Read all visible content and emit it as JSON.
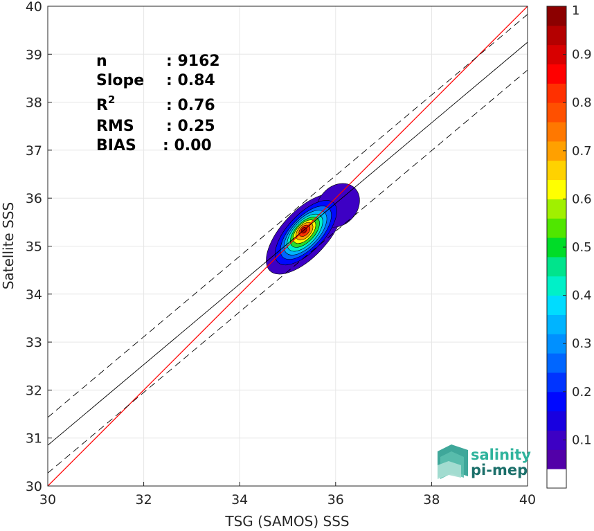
{
  "chart_data": {
    "type": "heatmap",
    "xlabel": "TSG (SAMOS) SSS",
    "ylabel": "Satellite SSS",
    "xlim": [
      30,
      40
    ],
    "ylim": [
      30,
      40
    ],
    "x_ticks": [
      "30",
      "32",
      "34",
      "36",
      "38",
      "40"
    ],
    "y_ticks": [
      "30",
      "31",
      "32",
      "33",
      "34",
      "35",
      "36",
      "37",
      "38",
      "39",
      "40"
    ],
    "grid": true,
    "stats": [
      {
        "key": "n",
        "value": ": 9162"
      },
      {
        "key": "Slope",
        "value": ": 0.84"
      },
      {
        "key": "R",
        "sup": "2",
        "value": ": 0.76"
      },
      {
        "key": "RMS",
        "value": ": 0.25"
      },
      {
        "key": "BIAS",
        "value": ": 0.00"
      }
    ],
    "lines": [
      {
        "kind": "identity",
        "color": "#ff0000",
        "slope": 1.0,
        "intercept": 0.0
      },
      {
        "kind": "regression",
        "color": "#000000",
        "slope": 0.84,
        "intercept": 5.65
      },
      {
        "kind": "upper-bound",
        "color": "#000000",
        "dash": true,
        "slope": 0.84,
        "intercept": 6.23
      },
      {
        "kind": "lower-bound",
        "color": "#000000",
        "dash": true,
        "slope": 0.84,
        "intercept": 5.07
      }
    ],
    "density_levels": [
      {
        "level": 0.0,
        "color": "#3d00c4",
        "ellipses": [
          {
            "cx": 35.35,
            "cy": 35.25,
            "rx": 1.05,
            "ry": 0.48,
            "rot": 47
          },
          {
            "cx": 36.05,
            "cy": 35.85,
            "rx": 0.5,
            "ry": 0.4,
            "rot": 47
          }
        ]
      },
      {
        "level": 0.15,
        "color": "#0008ff",
        "ellipses": [
          {
            "cx": 35.38,
            "cy": 35.28,
            "rx": 0.85,
            "ry": 0.38,
            "rot": 47
          }
        ]
      },
      {
        "level": 0.25,
        "color": "#0066ff",
        "ellipses": [
          {
            "cx": 35.38,
            "cy": 35.28,
            "rx": 0.7,
            "ry": 0.32,
            "rot": 47
          }
        ]
      },
      {
        "level": 0.35,
        "color": "#00b4ff",
        "ellipses": [
          {
            "cx": 35.37,
            "cy": 35.28,
            "rx": 0.58,
            "ry": 0.28,
            "rot": 47
          }
        ]
      },
      {
        "level": 0.45,
        "color": "#00f0c8",
        "ellipses": [
          {
            "cx": 35.36,
            "cy": 35.28,
            "rx": 0.48,
            "ry": 0.24,
            "rot": 47
          }
        ]
      },
      {
        "level": 0.55,
        "color": "#28dc28",
        "ellipses": [
          {
            "cx": 35.36,
            "cy": 35.29,
            "rx": 0.39,
            "ry": 0.2,
            "rot": 47
          }
        ]
      },
      {
        "level": 0.65,
        "color": "#ffff00",
        "ellipses": [
          {
            "cx": 35.35,
            "cy": 35.3,
            "rx": 0.3,
            "ry": 0.16,
            "rot": 47
          }
        ]
      },
      {
        "level": 0.75,
        "color": "#ffa000",
        "ellipses": [
          {
            "cx": 35.35,
            "cy": 35.31,
            "rx": 0.22,
            "ry": 0.13,
            "rot": 47
          }
        ]
      },
      {
        "level": 0.85,
        "color": "#ff3000",
        "ellipses": [
          {
            "cx": 35.35,
            "cy": 35.32,
            "rx": 0.14,
            "ry": 0.09,
            "rot": 47
          }
        ]
      },
      {
        "level": 0.95,
        "color": "#b40000",
        "ellipses": [
          {
            "cx": 35.34,
            "cy": 35.33,
            "rx": 0.07,
            "ry": 0.05,
            "rot": 47
          }
        ]
      }
    ],
    "colorbar": {
      "ticks": [
        "0.1",
        "0.2",
        "0.3",
        "0.4",
        "0.5",
        "0.6",
        "0.7",
        "0.8",
        "0.9",
        "1"
      ],
      "tick_values": [
        0.1,
        0.2,
        0.3,
        0.4,
        0.5,
        0.6,
        0.7,
        0.8,
        0.9,
        1.0
      ],
      "colors": [
        "#ffffff",
        "#5200a8",
        "#3d00c4",
        "#1800e0",
        "#0008ff",
        "#0034ff",
        "#0066ff",
        "#0090ff",
        "#00b4ff",
        "#00dcff",
        "#00f0c8",
        "#00e48c",
        "#00dc28",
        "#50e600",
        "#a0f000",
        "#ffff00",
        "#ffd200",
        "#ffa000",
        "#ff7800",
        "#ff5000",
        "#ff3000",
        "#ff0000",
        "#d80000",
        "#b40000",
        "#8c0000"
      ]
    },
    "logo": {
      "line1": "salinity",
      "line2": "pi-mep"
    }
  }
}
